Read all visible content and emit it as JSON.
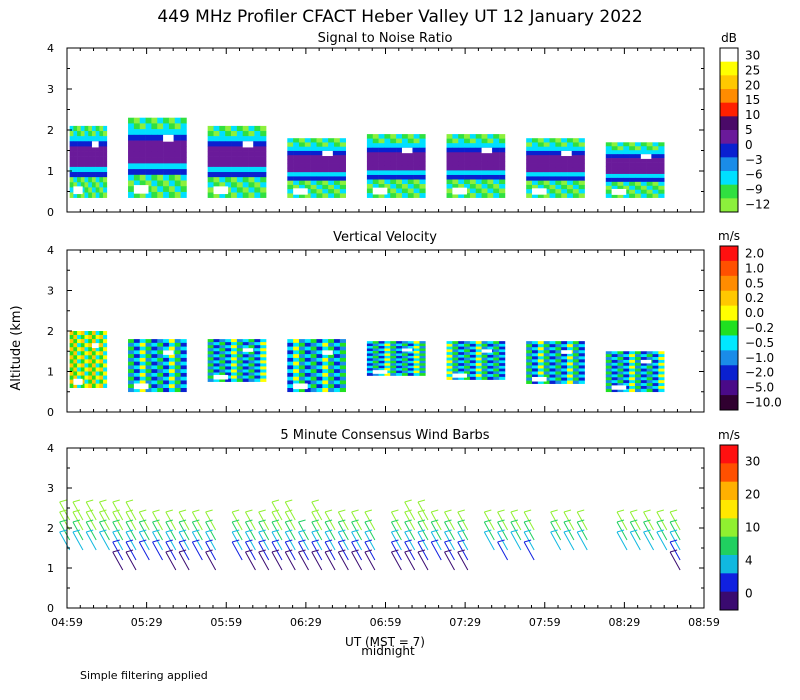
{
  "title": "449 MHz Profiler CFACT Heber Valley UT 12 January 2022",
  "ylabel": "Altitude (km)",
  "xlabel": "UT  (MST = 7)",
  "midnight_label": "midnight",
  "footnote": "Simple filtering applied",
  "x_ticks": [
    "04:59",
    "05:29",
    "05:59",
    "06:29",
    "06:59",
    "07:29",
    "07:59",
    "08:29",
    "08:59"
  ],
  "y_ticks": [
    "0",
    "1",
    "2",
    "3",
    "4"
  ],
  "chart_data": [
    {
      "type": "heatmap",
      "title": "Signal to Noise Ratio",
      "units": "dB",
      "ylim": [
        0,
        4
      ],
      "colorbar_labels": [
        "30",
        "25",
        "20",
        "15",
        "10",
        "5",
        "0",
        "−3",
        "−6",
        "−9",
        "−12"
      ],
      "colorbar_colors": [
        "#ffffff",
        "#ffff00",
        "#ffc800",
        "#ff8c00",
        "#ff2000",
        "#4a0a68",
        "#6a1a9a",
        "#0a20d0",
        "#1a8ce8",
        "#00e0ff",
        "#30e040",
        "#8cf03c"
      ],
      "segments": [
        {
          "start": "05:00",
          "end": "05:14",
          "bottom_km": 0.35,
          "top_km": 2.1
        },
        {
          "start": "05:22",
          "end": "05:44",
          "bottom_km": 0.35,
          "top_km": 2.3
        },
        {
          "start": "05:52",
          "end": "06:14",
          "bottom_km": 0.35,
          "top_km": 2.1
        },
        {
          "start": "06:22",
          "end": "06:44",
          "bottom_km": 0.35,
          "top_km": 1.8
        },
        {
          "start": "06:52",
          "end": "07:14",
          "bottom_km": 0.35,
          "top_km": 1.9
        },
        {
          "start": "07:22",
          "end": "07:44",
          "bottom_km": 0.35,
          "top_km": 1.9
        },
        {
          "start": "07:52",
          "end": "08:14",
          "bottom_km": 0.35,
          "top_km": 1.8
        },
        {
          "start": "08:22",
          "end": "08:44",
          "bottom_km": 0.35,
          "top_km": 1.7
        }
      ]
    },
    {
      "type": "heatmap",
      "title": "Vertical Velocity",
      "units": "m/s",
      "ylim": [
        0,
        4
      ],
      "colorbar_labels": [
        "2.0",
        "1.0",
        "0.5",
        "0.2",
        "0.0",
        "−0.2",
        "−0.5",
        "−1.0",
        "−2.0",
        "−5.0",
        "−10.0"
      ],
      "colorbar_colors": [
        "#ff1010",
        "#ff5000",
        "#ff8c00",
        "#ffc800",
        "#ffff00",
        "#20e020",
        "#00e8ff",
        "#1a8ce8",
        "#0a20d0",
        "#4a0a88",
        "#300030"
      ],
      "segments": [
        {
          "start": "05:00",
          "end": "05:14",
          "bottom_km": 0.6,
          "top_km": 2.0
        },
        {
          "start": "05:22",
          "end": "05:44",
          "bottom_km": 0.5,
          "top_km": 1.8
        },
        {
          "start": "05:52",
          "end": "06:14",
          "bottom_km": 0.75,
          "top_km": 1.8
        },
        {
          "start": "06:22",
          "end": "06:44",
          "bottom_km": 0.5,
          "top_km": 1.8
        },
        {
          "start": "06:52",
          "end": "07:14",
          "bottom_km": 0.9,
          "top_km": 1.75
        },
        {
          "start": "07:22",
          "end": "07:44",
          "bottom_km": 0.8,
          "top_km": 1.75
        },
        {
          "start": "07:52",
          "end": "08:14",
          "bottom_km": 0.7,
          "top_km": 1.75
        },
        {
          "start": "08:22",
          "end": "08:44",
          "bottom_km": 0.5,
          "top_km": 1.5
        }
      ]
    },
    {
      "type": "scatter",
      "title": "5 Minute Consensus Wind Barbs",
      "units": "m/s",
      "ylim": [
        0,
        4
      ],
      "colorbar_labels": [
        "30",
        "20",
        "10",
        "4",
        "0"
      ],
      "colorbar_colors": [
        "#ff1010",
        "#ff5000",
        "#ffb000",
        "#ffe800",
        "#90f030",
        "#20d060",
        "#10b8e0",
        "#1020e0",
        "#3a0a70"
      ],
      "levels_km": [
        2.2,
        1.95,
        1.7,
        1.45,
        1.2,
        0.95
      ],
      "columns": [
        {
          "time": "05:00",
          "top_km": 2.3,
          "bottom_km": 1.5
        },
        {
          "time": "05:05",
          "top_km": 2.2,
          "bottom_km": 1.3
        },
        {
          "time": "05:10",
          "top_km": 2.2,
          "bottom_km": 1.4
        },
        {
          "time": "05:15",
          "top_km": 2.3,
          "bottom_km": 1.3
        },
        {
          "time": "05:20",
          "top_km": 2.4,
          "bottom_km": 0.8
        },
        {
          "time": "05:25",
          "top_km": 2.3,
          "bottom_km": 0.8
        },
        {
          "time": "05:30",
          "top_km": 2.1,
          "bottom_km": 1.1
        },
        {
          "time": "05:35",
          "top_km": 2.1,
          "bottom_km": 1.2
        },
        {
          "time": "05:40",
          "top_km": 2.0,
          "bottom_km": 1.0
        },
        {
          "time": "05:45",
          "top_km": 2.1,
          "bottom_km": 1.0
        },
        {
          "time": "05:50",
          "top_km": 2.0,
          "bottom_km": 1.1
        },
        {
          "time": "05:55",
          "top_km": 1.9,
          "bottom_km": 1.0
        },
        {
          "time": "06:05",
          "top_km": 2.0,
          "bottom_km": 1.1
        },
        {
          "time": "06:10",
          "top_km": 1.9,
          "bottom_km": 1.0
        },
        {
          "time": "06:15",
          "top_km": 1.9,
          "bottom_km": 1.0
        },
        {
          "time": "06:20",
          "top_km": 2.3,
          "bottom_km": 0.9
        },
        {
          "time": "06:25",
          "top_km": 2.4,
          "bottom_km": 0.9
        },
        {
          "time": "06:30",
          "top_km": 1.8,
          "bottom_km": 1.0
        },
        {
          "time": "06:35",
          "top_km": 2.2,
          "bottom_km": 0.9
        },
        {
          "time": "06:40",
          "top_km": 2.0,
          "bottom_km": 0.9
        },
        {
          "time": "06:45",
          "top_km": 2.0,
          "bottom_km": 0.9
        },
        {
          "time": "06:50",
          "top_km": 1.9,
          "bottom_km": 1.0
        },
        {
          "time": "06:55",
          "top_km": 1.9,
          "bottom_km": 0.9
        },
        {
          "time": "07:05",
          "top_km": 2.1,
          "bottom_km": 1.0
        },
        {
          "time": "07:10",
          "top_km": 2.3,
          "bottom_km": 1.0
        },
        {
          "time": "07:15",
          "top_km": 2.2,
          "bottom_km": 1.0
        },
        {
          "time": "07:20",
          "top_km": 2.1,
          "bottom_km": 1.1
        },
        {
          "time": "07:25",
          "top_km": 2.0,
          "bottom_km": 1.0
        },
        {
          "time": "07:30",
          "top_km": 2.0,
          "bottom_km": 1.0
        },
        {
          "time": "07:40",
          "top_km": 2.1,
          "bottom_km": 1.3
        },
        {
          "time": "07:45",
          "top_km": 2.1,
          "bottom_km": 1.2
        },
        {
          "time": "07:50",
          "top_km": 2.0,
          "bottom_km": 1.3
        },
        {
          "time": "07:55",
          "top_km": 2.1,
          "bottom_km": 1.2
        },
        {
          "time": "08:05",
          "top_km": 2.0,
          "bottom_km": 1.3
        },
        {
          "time": "08:10",
          "top_km": 2.0,
          "bottom_km": 1.3
        },
        {
          "time": "08:15",
          "top_km": 2.0,
          "bottom_km": 1.3
        },
        {
          "time": "08:30",
          "top_km": 2.0,
          "bottom_km": 1.3
        },
        {
          "time": "08:35",
          "top_km": 1.9,
          "bottom_km": 1.3
        },
        {
          "time": "08:40",
          "top_km": 1.9,
          "bottom_km": 1.3
        },
        {
          "time": "08:45",
          "top_km": 1.9,
          "bottom_km": 1.3
        },
        {
          "time": "08:50",
          "top_km": 1.9,
          "bottom_km": 0.6
        }
      ]
    }
  ]
}
